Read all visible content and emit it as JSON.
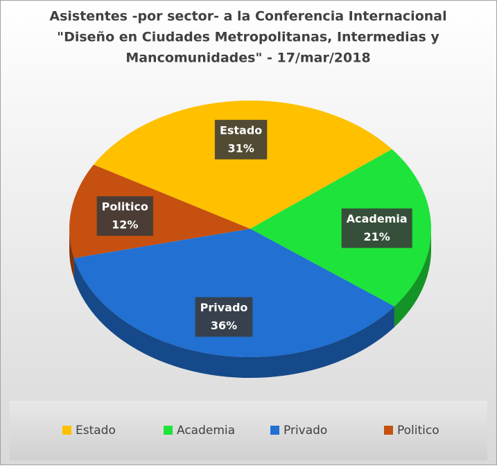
{
  "chart_data": {
    "type": "pie3d",
    "title": [
      "Asistentes -por sector- a la Conferencia Internacional",
      "\"Diseño en Ciudades Metropolitanas, Intermedias y",
      "Mancomunidades\" - 17/mar/2018"
    ],
    "categories": [
      "Estado",
      "Academia",
      "Privado",
      "Politico"
    ],
    "values": [
      31,
      21,
      36,
      12
    ],
    "value_labels": [
      "31%",
      "21%",
      "36%",
      "12%"
    ],
    "colors": [
      "#ffc000",
      "#1ee33a",
      "#2170d2",
      "#c55010"
    ],
    "legend": "bottom"
  }
}
